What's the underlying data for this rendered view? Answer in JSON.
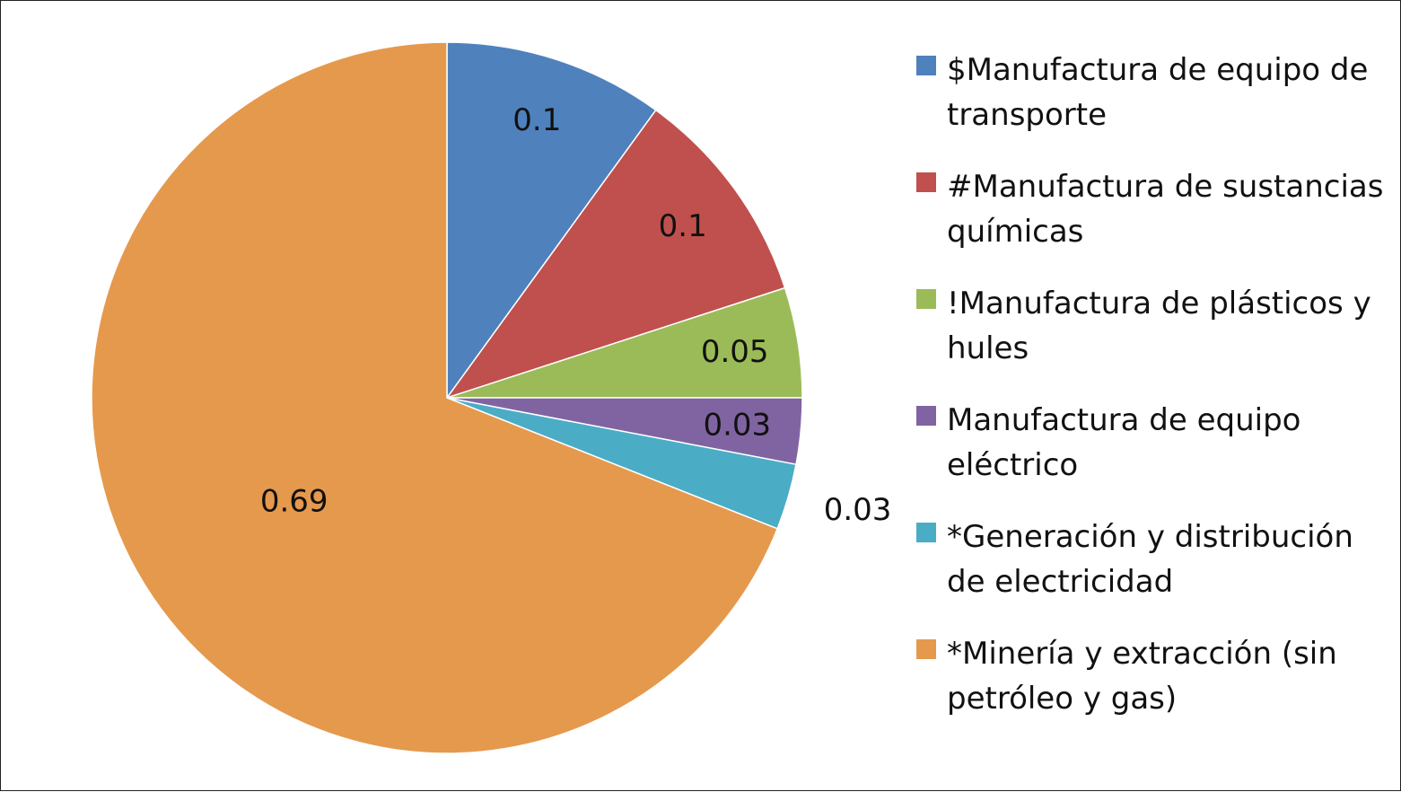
{
  "chart_data": {
    "type": "pie",
    "title": "",
    "legend_position": "right",
    "slices": [
      {
        "label": "$Manufactura de equipo de transporte",
        "value": 0.1,
        "value_label": "0.1",
        "color": "#4F81BD"
      },
      {
        "label": "#Manufactura de sustancias químicas",
        "value": 0.1,
        "value_label": "0.1",
        "color": "#C0504D"
      },
      {
        "label": "!Manufactura de plásticos y hules",
        "value": 0.05,
        "value_label": "0.05",
        "color": "#9BBB59"
      },
      {
        "label": " Manufactura de equipo eléctrico",
        "value": 0.03,
        "value_label": "0.03",
        "color": "#8064A2"
      },
      {
        "label": "*Generación y distribución de electricidad",
        "value": 0.03,
        "value_label": "0.03",
        "color": "#4BACC6"
      },
      {
        "label": "*Minería y extracción (sin petróleo y gas)",
        "value": 0.69,
        "value_label": "0.69",
        "color": "#E5994D"
      }
    ]
  }
}
